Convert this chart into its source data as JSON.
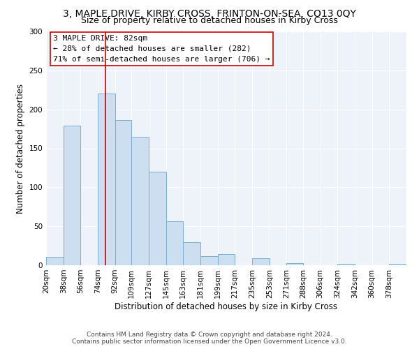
{
  "title": "3, MAPLE DRIVE, KIRBY CROSS, FRINTON-ON-SEA, CO13 0QY",
  "subtitle": "Size of property relative to detached houses in Kirby Cross",
  "xlabel": "Distribution of detached houses by size in Kirby Cross",
  "ylabel": "Number of detached properties",
  "bin_labels": [
    "20sqm",
    "38sqm",
    "56sqm",
    "74sqm",
    "92sqm",
    "109sqm",
    "127sqm",
    "145sqm",
    "163sqm",
    "181sqm",
    "199sqm",
    "217sqm",
    "235sqm",
    "253sqm",
    "271sqm",
    "288sqm",
    "306sqm",
    "324sqm",
    "342sqm",
    "360sqm",
    "378sqm"
  ],
  "bin_left_edges": [
    20,
    38,
    56,
    74,
    92,
    109,
    127,
    145,
    163,
    181,
    199,
    217,
    235,
    253,
    271,
    288,
    306,
    324,
    342,
    360,
    378
  ],
  "bin_width": 18,
  "bar_heights": [
    11,
    179,
    0,
    220,
    186,
    165,
    120,
    56,
    30,
    12,
    14,
    0,
    9,
    0,
    3,
    0,
    0,
    2,
    0,
    0,
    2
  ],
  "bar_color": "#ccdff0",
  "bar_edgecolor": "#7aadd4",
  "vline_x": 82,
  "vline_color": "#cc0000",
  "annotation_line1": "3 MAPLE DRIVE: 82sqm",
  "annotation_line2": "← 28% of detached houses are smaller (282)",
  "annotation_line3": "71% of semi-detached houses are larger (706) →",
  "ylim": [
    0,
    300
  ],
  "yticks": [
    0,
    50,
    100,
    150,
    200,
    250,
    300
  ],
  "footer_line1": "Contains HM Land Registry data © Crown copyright and database right 2024.",
  "footer_line2": "Contains public sector information licensed under the Open Government Licence v3.0.",
  "bg_color": "#eef2f9",
  "grid_color": "#ffffff",
  "title_fontsize": 10,
  "subtitle_fontsize": 9,
  "axis_label_fontsize": 8.5,
  "tick_fontsize": 7.5,
  "annotation_fontsize": 8,
  "footer_fontsize": 6.5
}
